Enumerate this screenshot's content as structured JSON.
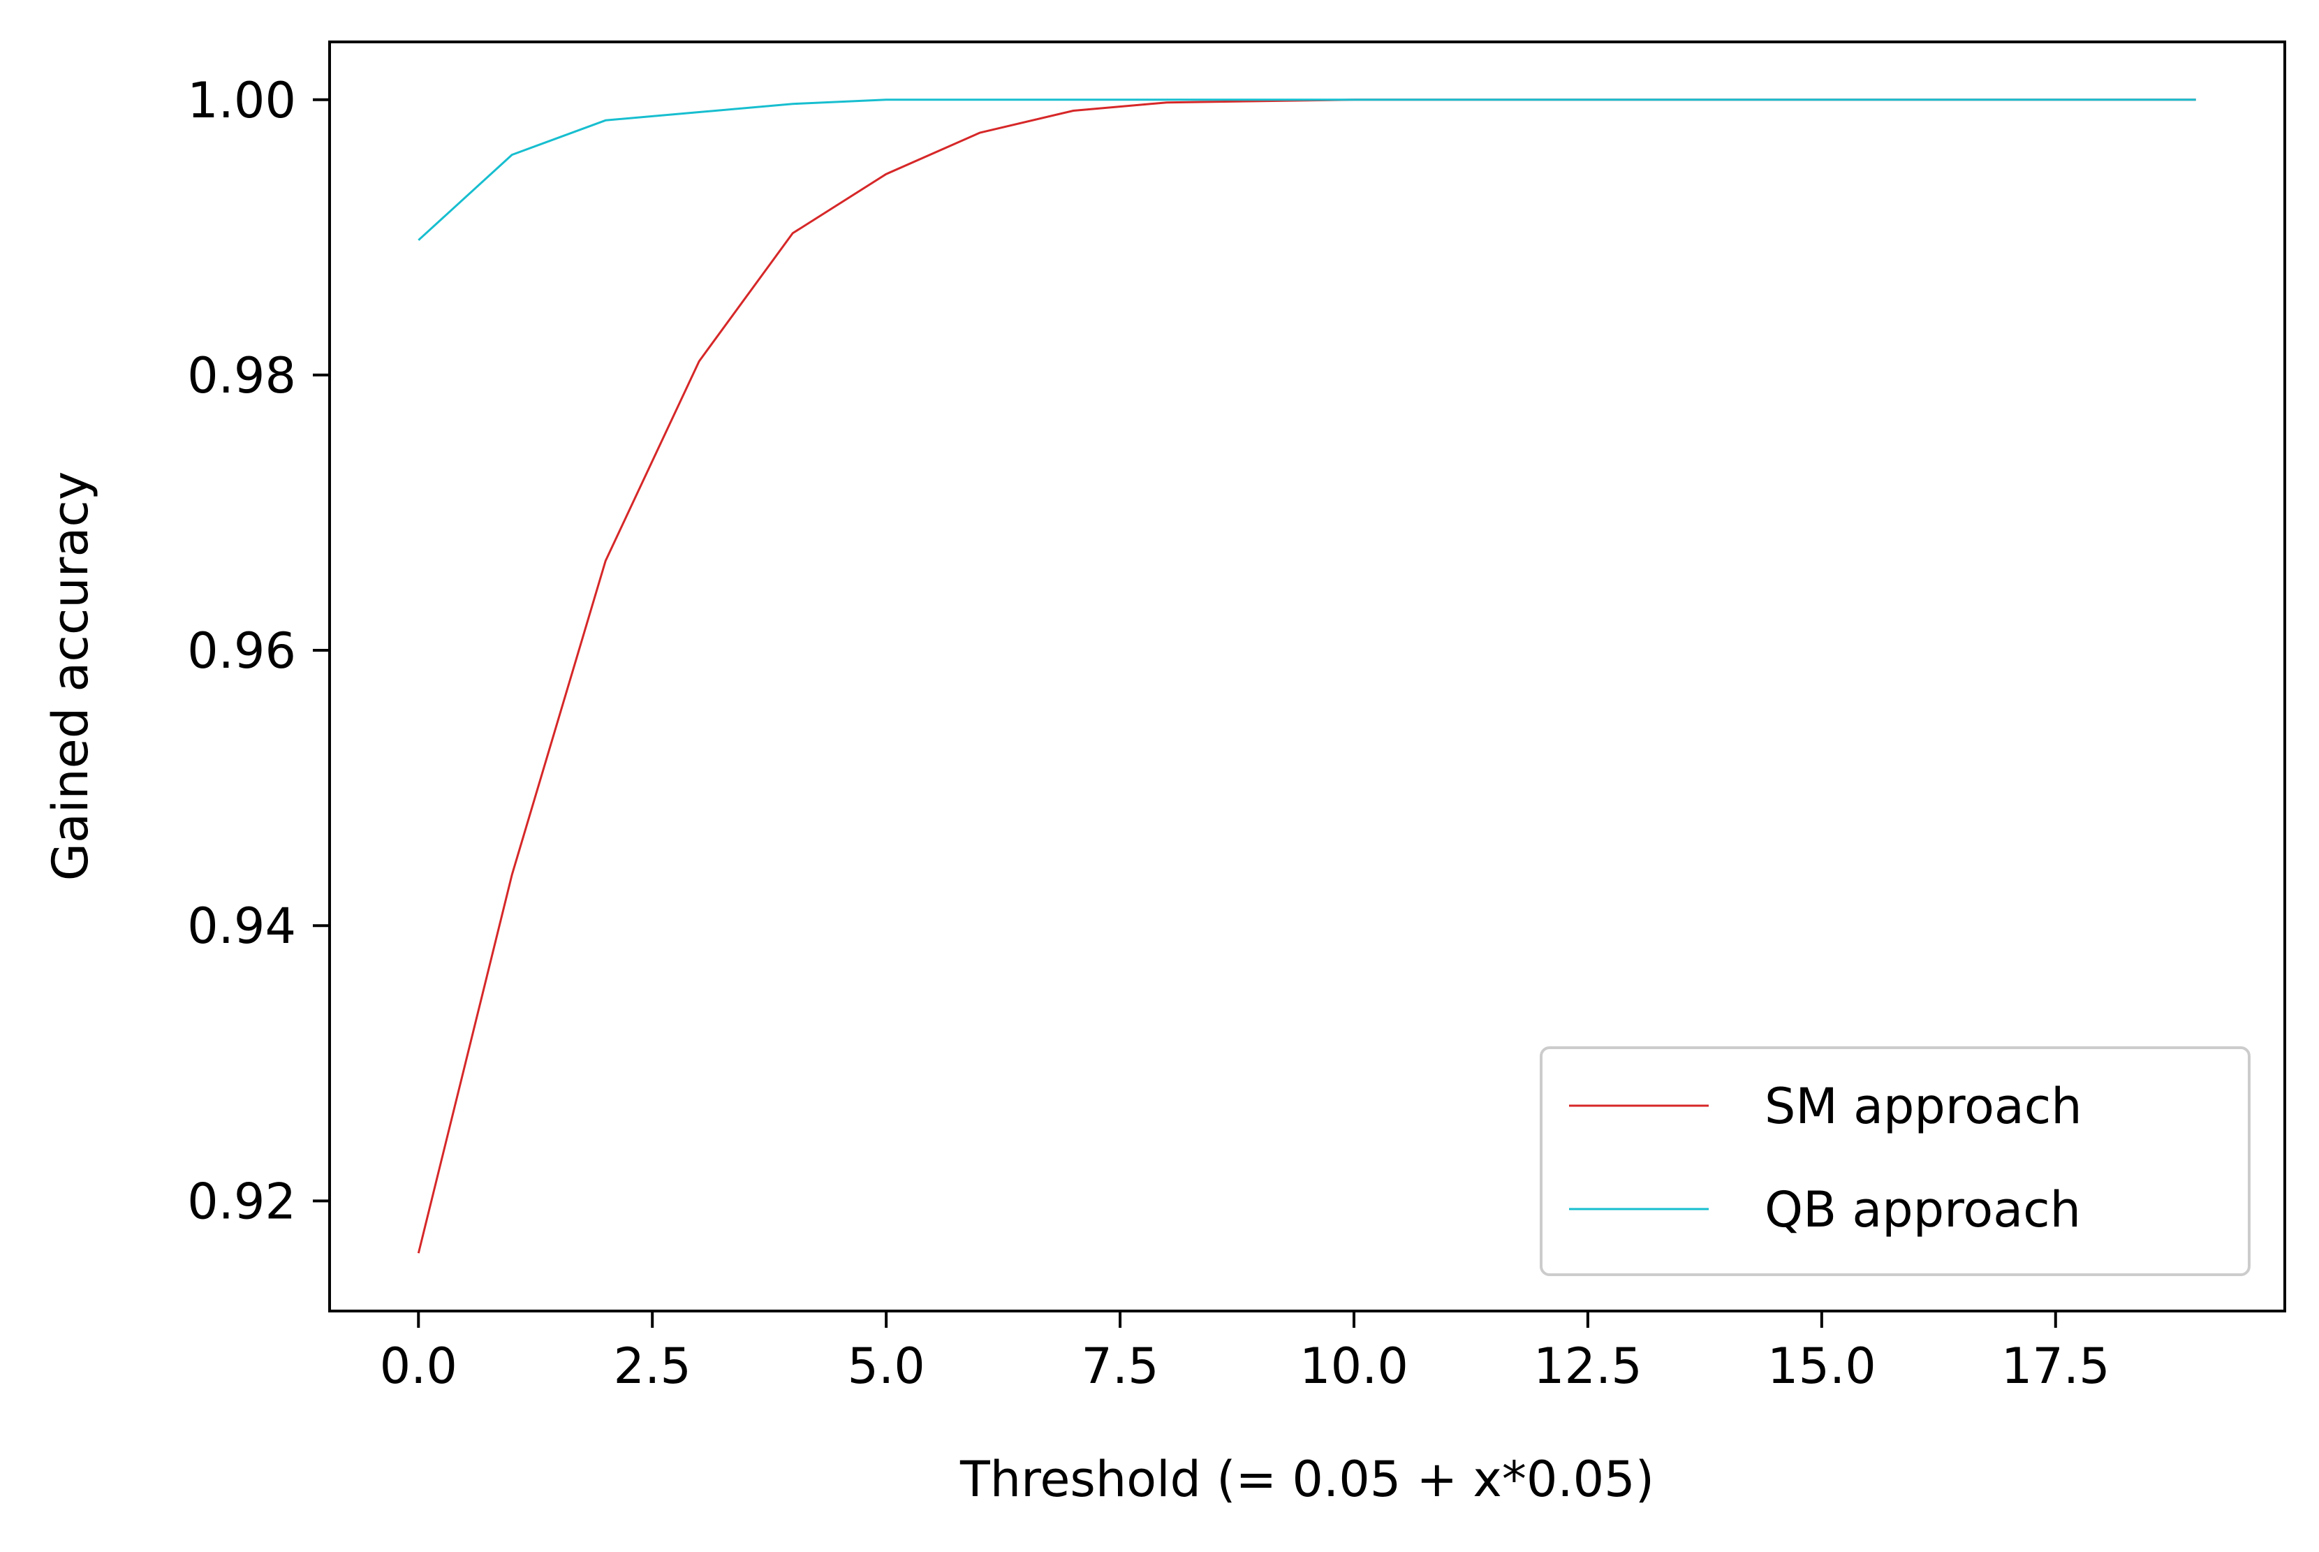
{
  "chart_data": {
    "type": "line",
    "xlabel": "Threshold (= 0.05 + x*0.05)",
    "ylabel": "Gained accuracy",
    "xlim": [
      -0.95,
      19.95
    ],
    "ylim": [
      0.912,
      1.0042
    ],
    "xticks": [
      0.0,
      2.5,
      5.0,
      7.5,
      10.0,
      12.5,
      15.0,
      17.5
    ],
    "xtick_labels": [
      "0.0",
      "2.5",
      "5.0",
      "7.5",
      "10.0",
      "12.5",
      "15.0",
      "17.5"
    ],
    "yticks": [
      0.92,
      0.94,
      0.96,
      0.98,
      1.0
    ],
    "ytick_labels": [
      "0.92",
      "0.94",
      "0.96",
      "0.98",
      "1.00"
    ],
    "grid": false,
    "legend_position": "lower-right",
    "x": [
      0,
      1,
      2,
      3,
      4,
      5,
      6,
      7,
      8,
      9,
      10,
      11,
      12,
      13,
      14,
      15,
      16,
      17,
      18,
      19
    ],
    "series": [
      {
        "name": "SM approach",
        "color": "#d62728",
        "values": [
          0.9162,
          0.9437,
          0.9665,
          0.981,
          0.9903,
          0.9946,
          0.9976,
          0.9992,
          0.9998,
          0.9999,
          1.0,
          1.0,
          1.0,
          1.0,
          1.0,
          1.0,
          1.0,
          1.0,
          1.0,
          1.0
        ]
      },
      {
        "name": "QB approach",
        "color": "#17becf",
        "values": [
          0.9898,
          0.996,
          0.9985,
          0.9991,
          0.9997,
          1.0,
          1.0,
          1.0,
          1.0,
          1.0,
          1.0,
          1.0,
          1.0,
          1.0,
          1.0,
          1.0,
          1.0,
          1.0,
          1.0,
          1.0
        ]
      }
    ]
  }
}
